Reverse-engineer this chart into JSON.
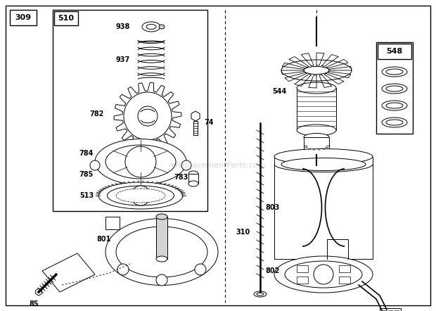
{
  "bg_color": "#ffffff",
  "watermark": "eReplacementParts.com",
  "lw": 1.0,
  "lw_thin": 0.7
}
